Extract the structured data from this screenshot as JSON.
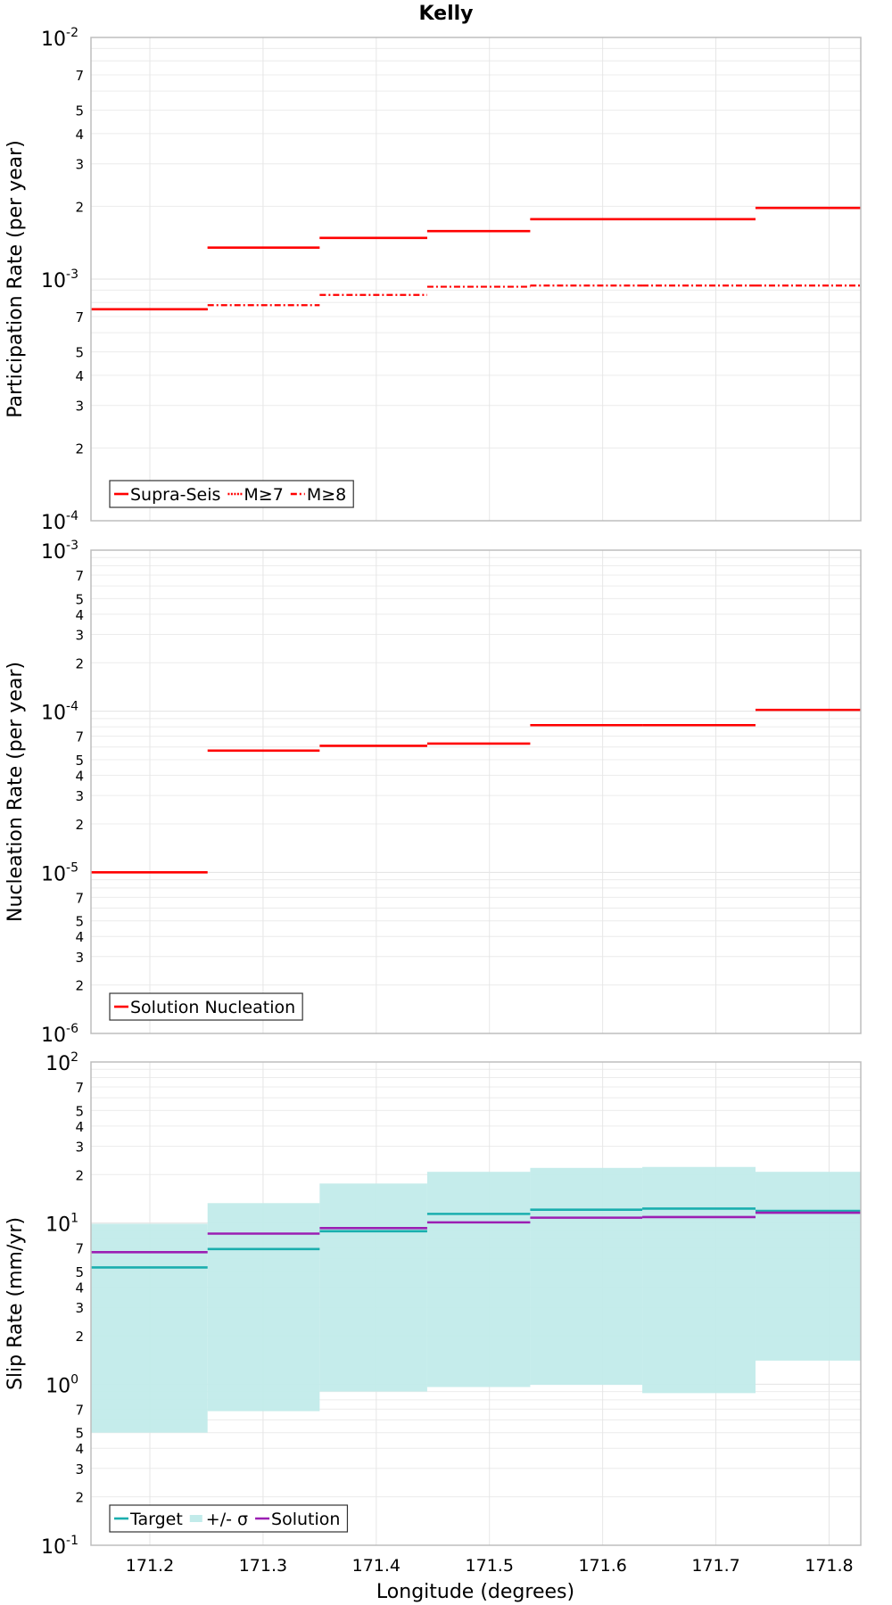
{
  "title": "Kelly",
  "xlabel": "Longitude (degrees)",
  "x_ticks": [
    171.2,
    171.3,
    171.4,
    171.5,
    171.6,
    171.7,
    171.8
  ],
  "x_tick_labels": [
    "171.2",
    "171.3",
    "171.4",
    "171.5",
    "171.6",
    "171.7",
    "171.8"
  ],
  "colors": {
    "red": "#ff0000",
    "teal": "#1aaeae",
    "band": "#c2ebea",
    "purple": "#9b1fb3"
  },
  "chart_data": [
    {
      "type": "line",
      "step": true,
      "ylabel": "Participation Rate (per year)",
      "yscale": "log",
      "ylim": [
        0.0001,
        0.01
      ],
      "xlim": [
        171.148,
        171.828
      ],
      "x_edges": [
        171.148,
        171.251,
        171.35,
        171.445,
        171.536,
        171.635,
        171.735,
        171.828
      ],
      "series": [
        {
          "name": "Supra-Seis",
          "style": "solid",
          "color": "#ff0000",
          "values": [
            0.00075,
            0.00135,
            0.00148,
            0.00158,
            0.00177,
            0.00177,
            0.00197
          ]
        },
        {
          "name": "M≥7",
          "style": "dotted",
          "color": "#ff0000",
          "values": [
            0.00075,
            0.00135,
            0.00148,
            0.00158,
            0.00177,
            0.00177,
            0.00197
          ]
        },
        {
          "name": "M≥8",
          "style": "dashdot",
          "color": "#ff0000",
          "values": [
            0.00075,
            0.00078,
            0.00086,
            0.00093,
            0.00094,
            0.00094,
            0.00094
          ]
        }
      ],
      "legend": [
        "Supra-Seis",
        "M≥7",
        "M≥8"
      ],
      "legend_position": "bottom-left"
    },
    {
      "type": "line",
      "step": true,
      "ylabel": "Nucleation Rate (per year)",
      "yscale": "log",
      "ylim": [
        1e-06,
        0.001
      ],
      "xlim": [
        171.148,
        171.828
      ],
      "x_edges": [
        171.148,
        171.251,
        171.35,
        171.445,
        171.536,
        171.635,
        171.735,
        171.828
      ],
      "series": [
        {
          "name": "Solution Nucleation",
          "style": "solid",
          "color": "#ff0000",
          "values": [
            1e-05,
            5.7e-05,
            6.1e-05,
            6.3e-05,
            8.2e-05,
            8.2e-05,
            0.000102
          ]
        }
      ],
      "legend": [
        "Solution Nucleation"
      ],
      "legend_position": "bottom-left"
    },
    {
      "type": "area",
      "step": true,
      "ylabel": "Slip Rate (mm/yr)",
      "yscale": "log",
      "ylim": [
        0.1,
        100
      ],
      "xlim": [
        171.148,
        171.828
      ],
      "x_edges": [
        171.148,
        171.251,
        171.35,
        171.445,
        171.536,
        171.635,
        171.735,
        171.828
      ],
      "band": {
        "name": "+/- σ",
        "color": "#c2ebea",
        "lower": [
          0.5,
          0.68,
          0.9,
          0.96,
          0.99,
          0.88,
          1.4
        ],
        "upper": [
          9.9,
          13.3,
          17.6,
          20.8,
          22.0,
          22.3,
          20.8
        ]
      },
      "series": [
        {
          "name": "Target",
          "style": "solid",
          "color": "#1aaeae",
          "values": [
            5.3,
            6.9,
            8.9,
            11.4,
            12.1,
            12.3,
            11.9
          ]
        },
        {
          "name": "Solution",
          "style": "solid",
          "color": "#9b1fb3",
          "values": [
            6.6,
            8.6,
            9.3,
            10.1,
            10.8,
            10.9,
            11.6
          ]
        }
      ],
      "legend": [
        "Target",
        "+/- σ",
        "Solution"
      ],
      "legend_position": "bottom-left"
    }
  ]
}
